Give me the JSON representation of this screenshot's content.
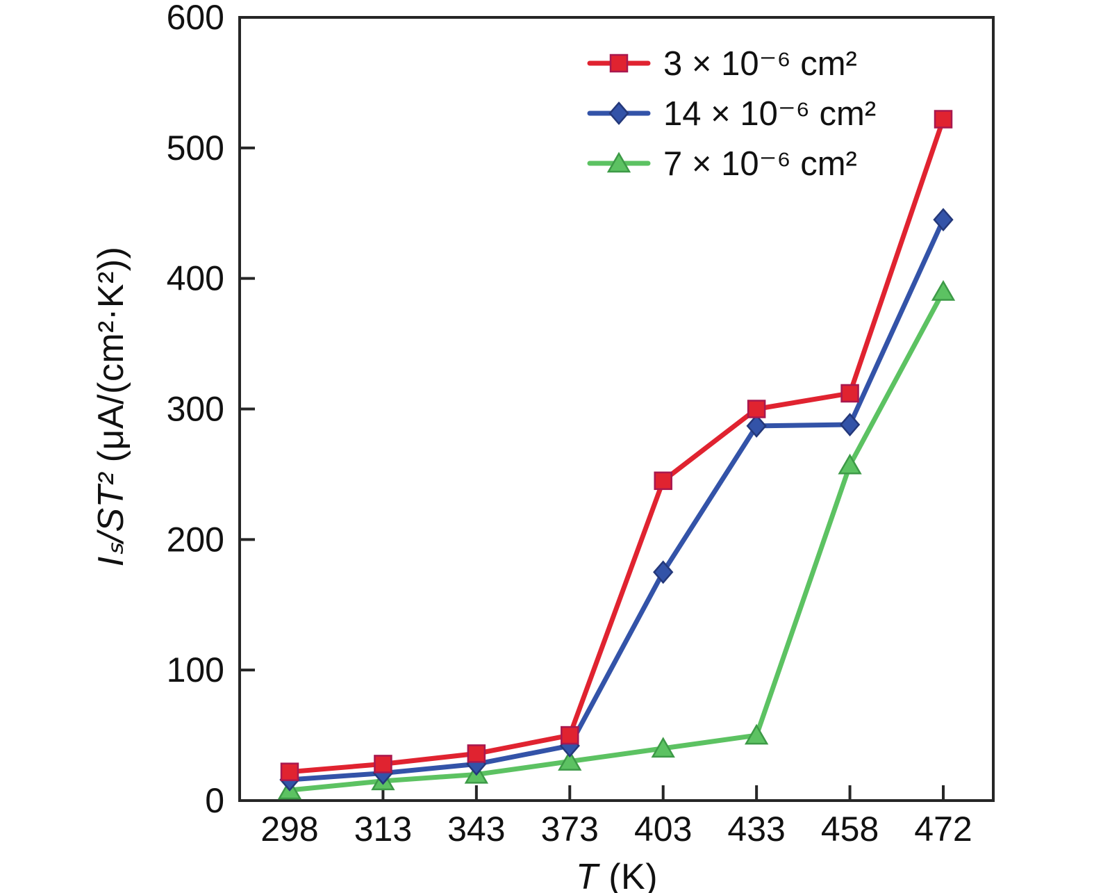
{
  "chart_data": {
    "type": "line",
    "title": "",
    "xlabel": {
      "symbol": "T",
      "unit": " (K)"
    },
    "ylabel": {
      "symbol": "Iₛ/ST²",
      "unit": " (μA/(cm²·K²))"
    },
    "categories": [
      "298",
      "313",
      "343",
      "373",
      "403",
      "433",
      "458",
      "472"
    ],
    "ylim": [
      0,
      600
    ],
    "yticks": [
      0,
      100,
      200,
      300,
      400,
      500,
      600
    ],
    "grid": false,
    "legend_position": "top-right-inside",
    "axis_color": "#262626",
    "text_color": "#111111",
    "series": [
      {
        "name": "3 × 10⁻⁶ cm²",
        "color": "#e02330",
        "edge_color": "#a8184f",
        "marker": "square",
        "values": [
          22,
          28,
          36,
          50,
          245,
          300,
          312,
          522
        ]
      },
      {
        "name": "14 × 10⁻⁶ cm²",
        "color": "#3353a8",
        "edge_color": "#24387a",
        "marker": "diamond",
        "values": [
          16,
          21,
          28,
          42,
          175,
          287,
          288,
          445
        ]
      },
      {
        "name": "7 × 10⁻⁶ cm²",
        "color": "#5cc262",
        "edge_color": "#3d9a47",
        "marker": "triangle",
        "values": [
          8,
          15,
          20,
          30,
          40,
          50,
          257,
          390
        ]
      }
    ]
  }
}
